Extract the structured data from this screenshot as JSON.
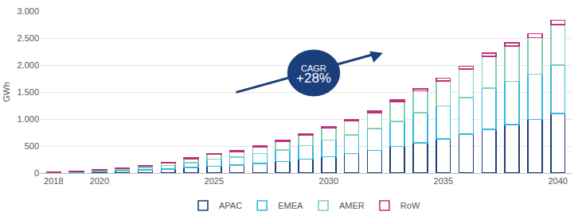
{
  "chart_data": {
    "type": "bar",
    "stacked": true,
    "grid": true,
    "legend": "bottom",
    "y_label": "GWh",
    "annotations": [
      "CAGR",
      "+28%"
    ],
    "x": [
      2018,
      2019,
      2020,
      2021,
      2022,
      2023,
      2024,
      2025,
      2026,
      2027,
      2028,
      2029,
      2030,
      2031,
      2032,
      2033,
      2034,
      2035,
      2036,
      2037,
      2038,
      2039,
      2040
    ],
    "xlim": [
      2017.4,
      2040.6
    ],
    "xticks": [
      2018,
      2020,
      2025,
      2030,
      2035,
      2040
    ],
    "ylim": [
      0,
      3000
    ],
    "yticks": [
      0,
      500,
      {
        "value": 1000,
        "label": "1.000"
      },
      {
        "value": 1500,
        "label": "1.500"
      },
      {
        "value": 2000,
        "label": "2.000"
      },
      {
        "value": 2500,
        "label": "2.500"
      },
      {
        "value": 3000,
        "label": "3.000"
      }
    ],
    "series": [
      {
        "name": "APAC",
        "color": "#1b3f7a",
        "values": [
          8,
          14,
          22,
          35,
          55,
          75,
          100,
          125,
          145,
          180,
          215,
          260,
          300,
          360,
          420,
          490,
          560,
          630,
          720,
          810,
          900,
          990,
          1100
        ]
      },
      {
        "name": "EMEA",
        "color": "#35b8e0",
        "values": [
          6,
          10,
          18,
          28,
          45,
          65,
          90,
          130,
          150,
          180,
          210,
          250,
          310,
          350,
          400,
          470,
          560,
          610,
          680,
          760,
          800,
          840,
          900
        ]
      },
      {
        "name": "AMER",
        "color": "#7fd1b0",
        "values": [
          5,
          9,
          15,
          22,
          35,
          52,
          75,
          95,
          105,
          125,
          160,
          195,
          230,
          260,
          300,
          360,
          400,
          470,
          530,
          590,
          650,
          680,
          750
        ]
      },
      {
        "name": "RoW",
        "color": "#c0307a",
        "values": [
          1,
          2,
          3,
          4,
          5,
          8,
          12,
          12,
          12,
          15,
          17,
          20,
          22,
          25,
          30,
          35,
          40,
          45,
          50,
          60,
          60,
          70,
          80
        ]
      }
    ]
  }
}
